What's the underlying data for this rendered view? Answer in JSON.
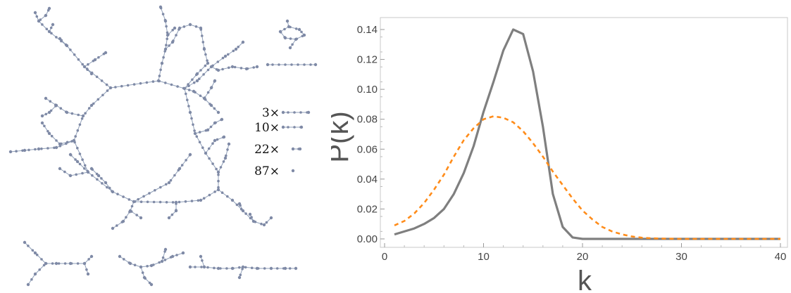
{
  "network_legend": {
    "items": [
      {
        "label": "3×",
        "size": 3
      },
      {
        "label": "10×",
        "size": 2
      },
      {
        "label": "22×",
        "size": 1
      },
      {
        "label": "87×",
        "size": 0
      }
    ]
  },
  "colors": {
    "node": "#7f8aa6",
    "edge": "#8f9fb8",
    "solid_series": "#7f7f7f",
    "dashed_series": "#ff8c1a",
    "frame": "#c8c8c8"
  },
  "chart_data": {
    "type": "line",
    "xlabel": "k",
    "ylabel": "P(k)",
    "xlim": [
      0,
      40
    ],
    "ylim": [
      0,
      0.145
    ],
    "xticks": [
      "0",
      "10",
      "20",
      "30",
      "40"
    ],
    "yticks": [
      "0.00",
      "0.02",
      "0.04",
      "0.06",
      "0.08",
      "0.10",
      "0.12",
      "0.14"
    ],
    "grid": false,
    "series": [
      {
        "style": "solid",
        "x": [
          1,
          2,
          3,
          4,
          5,
          6,
          7,
          8,
          9,
          10,
          11,
          12,
          13,
          14,
          15,
          16,
          17,
          18,
          19,
          20,
          21,
          22,
          23,
          24,
          25,
          26,
          27,
          28,
          29,
          30,
          31,
          32,
          33,
          34,
          35,
          36,
          37,
          38,
          39,
          40
        ],
        "y": [
          0.003,
          0.005,
          0.007,
          0.01,
          0.014,
          0.02,
          0.03,
          0.044,
          0.062,
          0.085,
          0.105,
          0.126,
          0.14,
          0.137,
          0.112,
          0.075,
          0.03,
          0.008,
          0.001,
          0,
          0,
          0,
          0,
          0,
          0,
          0,
          0,
          0,
          0,
          0,
          0,
          0,
          0,
          0,
          0,
          0,
          0,
          0,
          0,
          0
        ]
      },
      {
        "style": "dashed",
        "x": [
          1,
          2,
          3,
          4,
          5,
          6,
          7,
          8,
          9,
          10,
          11,
          12,
          13,
          14,
          15,
          16,
          17,
          18,
          19,
          20,
          21,
          22,
          23,
          24,
          25,
          26,
          27,
          28,
          29,
          30,
          31,
          32,
          33,
          34,
          35,
          36,
          37,
          38,
          39,
          40
        ],
        "y": [
          0.009,
          0.012,
          0.017,
          0.024,
          0.033,
          0.043,
          0.055,
          0.066,
          0.074,
          0.08,
          0.082,
          0.081,
          0.078,
          0.072,
          0.064,
          0.055,
          0.045,
          0.036,
          0.027,
          0.019,
          0.013,
          0.008,
          0.005,
          0.003,
          0.0016,
          0.0008,
          0.0004,
          0.0002,
          0.0001,
          0,
          0,
          0,
          0,
          0,
          0,
          0,
          0,
          0,
          0,
          0
        ]
      }
    ]
  }
}
